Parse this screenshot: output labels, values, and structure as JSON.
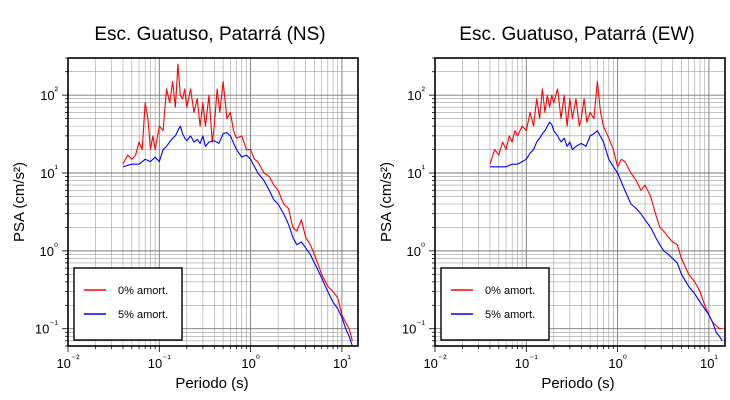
{
  "chart_data": [
    {
      "type": "line",
      "title": "Esc. Guatuso, Patarrá (NS)",
      "xlabel": "Periodo (s)",
      "ylabel": "PSA (cm/s²)",
      "xscale": "log",
      "yscale": "log",
      "xlim": [
        0.01,
        15
      ],
      "ylim": [
        0.06,
        300
      ],
      "x_ticks": [
        {
          "value": 0.01,
          "label": "10⁻²"
        },
        {
          "value": 0.1,
          "label": "10⁻¹"
        },
        {
          "value": 1,
          "label": "10⁰"
        },
        {
          "value": 10,
          "label": "10¹"
        }
      ],
      "y_ticks": [
        {
          "value": 0.1,
          "label": "10⁻¹"
        },
        {
          "value": 1,
          "label": "10⁰"
        },
        {
          "value": 10,
          "label": "10¹"
        },
        {
          "value": 100,
          "label": "10²"
        }
      ],
      "grid": true,
      "legend_position": "bottom-left",
      "series": [
        {
          "name": "0% amort.",
          "color": "#ff0000",
          "x": [
            0.04,
            0.045,
            0.05,
            0.055,
            0.06,
            0.065,
            0.07,
            0.075,
            0.08,
            0.085,
            0.09,
            0.1,
            0.11,
            0.12,
            0.13,
            0.14,
            0.15,
            0.16,
            0.17,
            0.18,
            0.19,
            0.2,
            0.22,
            0.24,
            0.26,
            0.28,
            0.3,
            0.32,
            0.35,
            0.38,
            0.4,
            0.43,
            0.46,
            0.5,
            0.55,
            0.6,
            0.65,
            0.7,
            0.8,
            0.9,
            1.0,
            1.1,
            1.2,
            1.4,
            1.6,
            1.8,
            2.0,
            2.3,
            2.6,
            2.9,
            3.2,
            3.6,
            4.0,
            4.5,
            5.0,
            6.0,
            7.0,
            8.0,
            9.0,
            10.0,
            11.0,
            12.0,
            13.0
          ],
          "y": [
            13,
            17,
            15,
            17,
            25,
            20,
            80,
            50,
            20,
            30,
            20,
            40,
            35,
            120,
            80,
            150,
            70,
            250,
            100,
            90,
            120,
            70,
            120,
            60,
            90,
            40,
            80,
            40,
            100,
            25,
            40,
            120,
            60,
            150,
            50,
            60,
            35,
            28,
            30,
            20,
            20,
            15,
            14,
            10,
            9,
            7,
            6,
            4,
            3.5,
            2,
            1.8,
            2.5,
            1.5,
            1.2,
            0.9,
            0.5,
            0.35,
            0.3,
            0.25,
            0.15,
            0.12,
            0.1,
            0.07
          ]
        },
        {
          "name": "5% amort.",
          "color": "#0000ff",
          "x": [
            0.04,
            0.05,
            0.06,
            0.07,
            0.08,
            0.09,
            0.1,
            0.11,
            0.12,
            0.13,
            0.14,
            0.15,
            0.16,
            0.17,
            0.18,
            0.19,
            0.2,
            0.22,
            0.24,
            0.26,
            0.28,
            0.3,
            0.32,
            0.35,
            0.4,
            0.45,
            0.5,
            0.55,
            0.6,
            0.7,
            0.8,
            0.9,
            1.0,
            1.2,
            1.4,
            1.6,
            1.8,
            2.0,
            2.3,
            2.6,
            2.9,
            3.2,
            3.6,
            4.0,
            4.5,
            5.0,
            6.0,
            7.0,
            8.0,
            9.0,
            10.0,
            11.0,
            12.0,
            13.0
          ],
          "y": [
            12,
            13,
            13,
            15,
            14,
            16,
            14,
            20,
            22,
            25,
            28,
            30,
            35,
            40,
            32,
            28,
            26,
            30,
            25,
            27,
            24,
            30,
            22,
            25,
            26,
            24,
            32,
            33,
            30,
            20,
            16,
            17,
            15,
            10,
            8,
            6,
            4.5,
            4,
            3,
            2.2,
            1.5,
            1.2,
            1.3,
            1.1,
            0.9,
            0.7,
            0.45,
            0.3,
            0.22,
            0.18,
            0.14,
            0.1,
            0.08,
            0.06
          ]
        }
      ]
    },
    {
      "type": "line",
      "title": "Esc. Guatuso, Patarrá (EW)",
      "xlabel": "Periodo (s)",
      "ylabel": "PSA (cm/s²)",
      "xscale": "log",
      "yscale": "log",
      "xlim": [
        0.01,
        15
      ],
      "ylim": [
        0.06,
        300
      ],
      "x_ticks": [
        {
          "value": 0.01,
          "label": "10⁻²"
        },
        {
          "value": 0.1,
          "label": "10⁻¹"
        },
        {
          "value": 1,
          "label": "10⁰"
        },
        {
          "value": 10,
          "label": "10¹"
        }
      ],
      "y_ticks": [
        {
          "value": 0.1,
          "label": "10⁻¹"
        },
        {
          "value": 1,
          "label": "10⁰"
        },
        {
          "value": 10,
          "label": "10¹"
        },
        {
          "value": 100,
          "label": "10²"
        }
      ],
      "grid": true,
      "legend_position": "bottom-left",
      "series": [
        {
          "name": "0% amort.",
          "color": "#ff0000",
          "x": [
            0.04,
            0.045,
            0.05,
            0.055,
            0.06,
            0.065,
            0.07,
            0.075,
            0.08,
            0.09,
            0.1,
            0.11,
            0.12,
            0.13,
            0.14,
            0.15,
            0.16,
            0.17,
            0.18,
            0.19,
            0.2,
            0.22,
            0.24,
            0.26,
            0.28,
            0.3,
            0.32,
            0.35,
            0.38,
            0.4,
            0.43,
            0.46,
            0.5,
            0.55,
            0.6,
            0.65,
            0.7,
            0.8,
            0.9,
            1.0,
            1.1,
            1.2,
            1.4,
            1.6,
            1.8,
            2.0,
            2.3,
            2.6,
            2.9,
            3.2,
            3.6,
            4.0,
            4.5,
            5.0,
            6.0,
            7.0,
            8.0,
            9.0,
            10.0,
            11.0,
            12.0,
            13.0,
            14.0
          ],
          "y": [
            13,
            20,
            17,
            25,
            20,
            30,
            25,
            35,
            30,
            40,
            35,
            60,
            40,
            90,
            50,
            120,
            60,
            100,
            70,
            100,
            80,
            120,
            50,
            100,
            40,
            90,
            50,
            90,
            40,
            50,
            90,
            45,
            60,
            50,
            150,
            60,
            40,
            28,
            20,
            12,
            15,
            14,
            10,
            8,
            6,
            7,
            5,
            3,
            2,
            1.8,
            1.5,
            1.3,
            1.2,
            0.8,
            0.5,
            0.4,
            0.3,
            0.2,
            0.15,
            0.12,
            0.11,
            0.1,
            0.1
          ]
        },
        {
          "name": "5% amort.",
          "color": "#0000ff",
          "x": [
            0.04,
            0.05,
            0.06,
            0.07,
            0.08,
            0.09,
            0.1,
            0.11,
            0.12,
            0.13,
            0.14,
            0.15,
            0.16,
            0.17,
            0.18,
            0.19,
            0.2,
            0.22,
            0.24,
            0.26,
            0.28,
            0.3,
            0.32,
            0.35,
            0.4,
            0.45,
            0.5,
            0.55,
            0.6,
            0.7,
            0.8,
            0.9,
            1.0,
            1.2,
            1.4,
            1.6,
            1.8,
            2.0,
            2.3,
            2.6,
            2.9,
            3.2,
            3.6,
            4.0,
            4.5,
            5.0,
            6.0,
            7.0,
            8.0,
            9.0,
            10.0,
            11.0,
            12.0,
            13.0,
            14.0
          ],
          "y": [
            12,
            12,
            12,
            13,
            13,
            14,
            15,
            18,
            20,
            25,
            28,
            32,
            35,
            40,
            45,
            42,
            35,
            30,
            25,
            28,
            22,
            25,
            20,
            22,
            24,
            22,
            30,
            32,
            35,
            25,
            15,
            12,
            10,
            6,
            4,
            3.5,
            3,
            2.5,
            2,
            1.5,
            1.2,
            1,
            0.9,
            0.8,
            0.7,
            0.5,
            0.35,
            0.28,
            0.22,
            0.18,
            0.15,
            0.12,
            0.09,
            0.08,
            0.07
          ]
        }
      ]
    }
  ]
}
